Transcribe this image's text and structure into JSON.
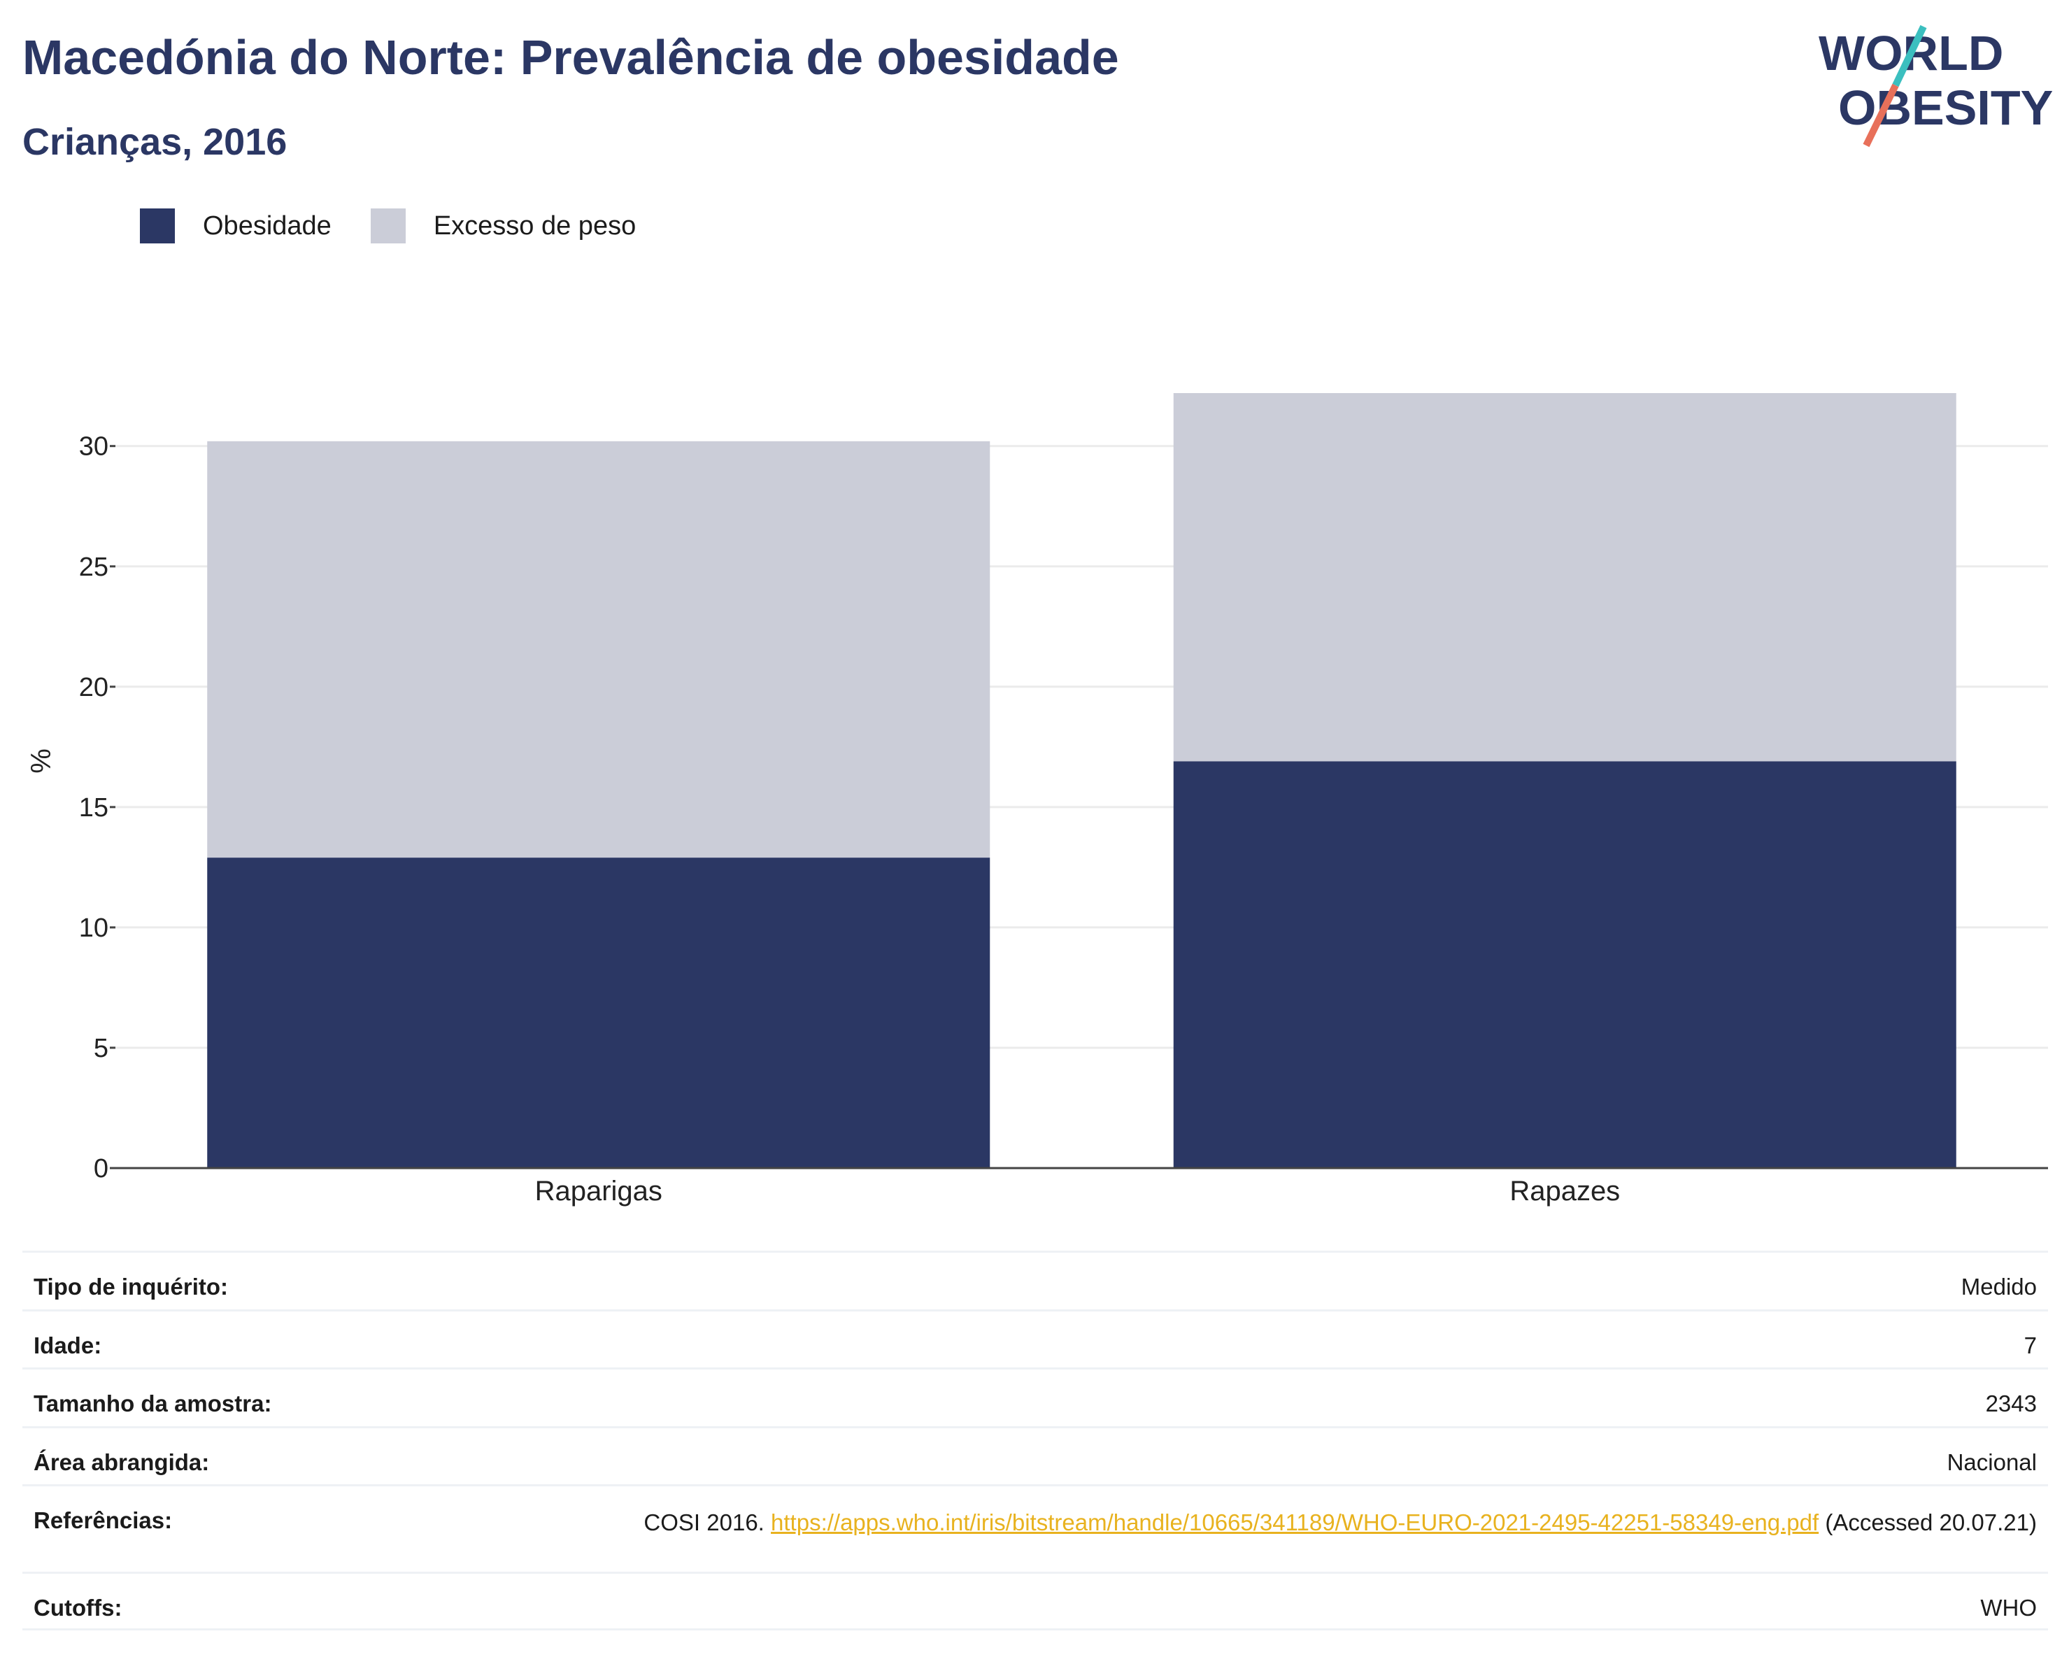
{
  "header": {
    "title": "Macedónia do Norte: Prevalência de obesidade",
    "subtitle": "Crianças, 2016"
  },
  "logo": {
    "line1": "WORLD",
    "line2": "OBESITY",
    "colors": {
      "text": "#2b3764",
      "slash_top": "#3bbfbf",
      "slash_bottom": "#e8705a"
    }
  },
  "legend": {
    "items": [
      {
        "label": "Obesidade",
        "color": "#2b3764"
      },
      {
        "label": "Excesso de peso",
        "color": "#cbcdd8"
      }
    ]
  },
  "chart_data": {
    "type": "bar",
    "stacked": true,
    "categories": [
      "Raparigas",
      "Rapazes"
    ],
    "series": [
      {
        "name": "Obesidade",
        "color": "#2b3764",
        "values": [
          12.9,
          16.9
        ]
      },
      {
        "name": "Excesso de peso",
        "color": "#cbcdd8",
        "values": [
          17.3,
          15.3
        ]
      }
    ],
    "ylabel": "%",
    "ylim": [
      0,
      32.2
    ],
    "yticks": [
      0,
      5,
      10,
      15,
      20,
      25,
      30
    ],
    "grid": true,
    "legend_position": "top-left"
  },
  "info": {
    "rows": [
      {
        "label": "Tipo de inquérito:",
        "value": "Medido"
      },
      {
        "label": "Idade:",
        "value": "7"
      },
      {
        "label": "Tamanho da amostra:",
        "value": "2343"
      },
      {
        "label": "Área abrangida:",
        "value": "Nacional"
      },
      {
        "label": "Referências:",
        "value_prefix": "COSI 2016. ",
        "link": "https://apps.who.int/iris/bitstream/handle/10665/341189/WHO-EURO-2021-2495-42251-58349-eng.pdf",
        "value_suffix": " (Accessed 20.07.21)"
      },
      {
        "label": "Cutoffs:",
        "value": "WHO"
      }
    ]
  }
}
